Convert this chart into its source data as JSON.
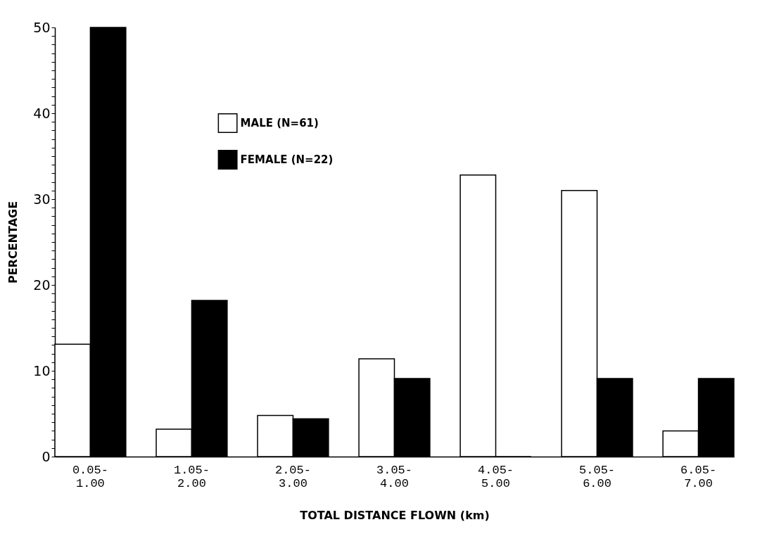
{
  "chart_data": {
    "type": "bar",
    "xlabel": "TOTAL DISTANCE FLOWN  (km)",
    "ylabel": "PERCENTAGE",
    "categories": [
      "0.05-1.00",
      "1.05-2.00",
      "2.05-3.00",
      "3.05-4.00",
      "4.05-5.00",
      "5.05-6.00",
      "6.05-7.00"
    ],
    "series": [
      {
        "name": "MALE (N=61)",
        "color": "#ffffff",
        "values": [
          13.1,
          3.2,
          4.8,
          11.4,
          32.8,
          31.0,
          3.0
        ]
      },
      {
        "name": "FEMALE (N=22)",
        "color": "#000000",
        "values": [
          50,
          18.2,
          4.4,
          9.1,
          0,
          9.1,
          9.1
        ]
      }
    ],
    "ylim": [
      0,
      50
    ],
    "yticks": [
      0,
      {
        "value": 1,
        "label": null
      },
      {
        "value": 2,
        "label": null
      },
      {
        "value": 3,
        "label": null
      },
      {
        "value": 4,
        "label": null
      },
      {
        "value": 5,
        "label": null
      },
      {
        "value": 6,
        "label": null
      },
      {
        "value": 7,
        "label": null
      },
      {
        "value": 8,
        "label": null
      },
      {
        "value": 9,
        "label": null
      },
      10,
      {
        "value": 11,
        "label": null
      },
      {
        "value": 12,
        "label": null
      },
      {
        "value": 13,
        "label": null
      },
      {
        "value": 14,
        "label": null
      },
      {
        "value": 15,
        "label": null
      },
      {
        "value": 16,
        "label": null
      },
      {
        "value": 17,
        "label": null
      },
      {
        "value": 18,
        "label": null
      },
      {
        "value": 19,
        "label": null
      },
      20,
      {
        "value": 21,
        "label": null
      },
      {
        "value": 22,
        "label": null
      },
      {
        "value": 23,
        "label": null
      },
      {
        "value": 24,
        "label": null
      },
      {
        "value": 25,
        "label": null
      },
      {
        "value": 26,
        "label": null
      },
      {
        "value": 27,
        "label": null
      },
      {
        "value": 28,
        "label": null
      },
      {
        "value": 29,
        "label": null
      },
      30,
      {
        "value": 31,
        "label": null
      },
      {
        "value": 32,
        "label": null
      },
      {
        "value": 33,
        "label": null
      },
      {
        "value": 34,
        "label": null
      },
      {
        "value": 35,
        "label": null
      },
      {
        "value": 36,
        "label": null
      },
      {
        "value": 37,
        "label": null
      },
      {
        "value": 38,
        "label": null
      },
      {
        "value": 39,
        "label": null
      },
      40,
      {
        "value": 41,
        "label": null
      },
      {
        "value": 42,
        "label": null
      },
      {
        "value": 43,
        "label": null
      },
      {
        "value": 44,
        "label": null
      },
      {
        "value": 45,
        "label": null
      },
      {
        "value": 46,
        "label": null
      },
      {
        "value": 47,
        "label": null
      },
      {
        "value": 48,
        "label": null
      },
      {
        "value": 49,
        "label": null
      },
      50
    ],
    "grid": false,
    "legend": "top left"
  }
}
